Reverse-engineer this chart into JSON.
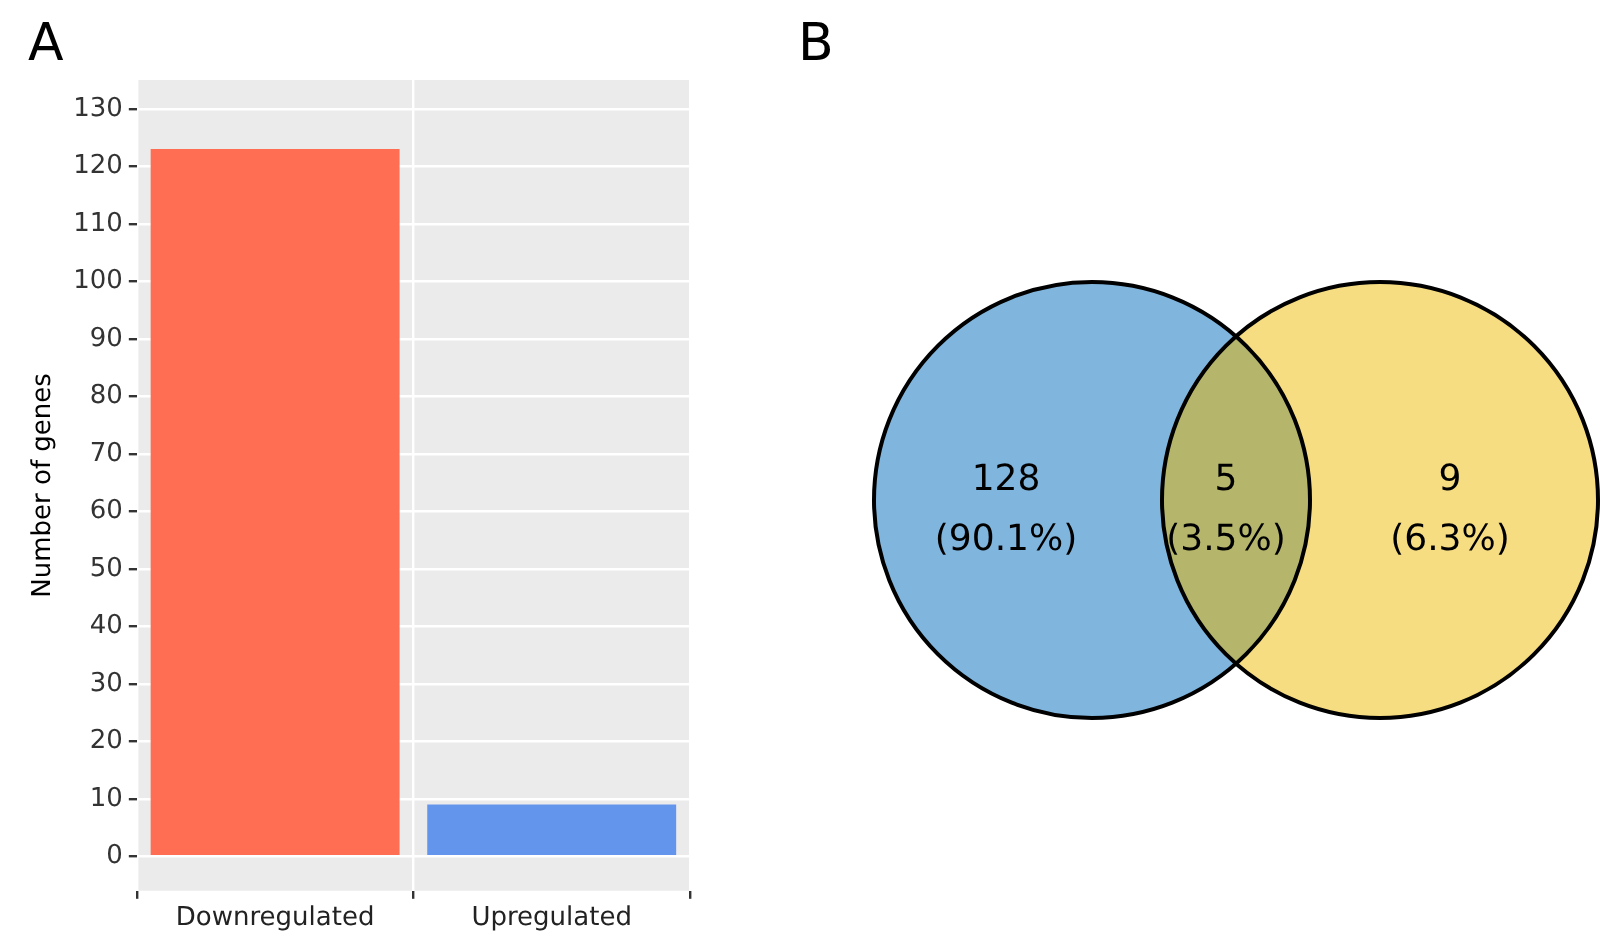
{
  "chart_data": [
    {
      "type": "bar",
      "title": "A",
      "ylabel": "Number of genes",
      "categories": [
        "Downregulated",
        "Upregulated"
      ],
      "values": [
        123,
        9
      ],
      "colors": [
        "#ff6e52",
        "#6495ed"
      ],
      "ylim": [
        -6,
        135
      ],
      "yticks": [
        0,
        10,
        20,
        30,
        40,
        50,
        60,
        70,
        80,
        90,
        100,
        110,
        120,
        130
      ],
      "grid": true,
      "legend": false
    },
    {
      "type": "other",
      "title": "B",
      "categories": [
        null,
        null,
        null
      ],
      "values": [
        128,
        5,
        9
      ],
      "value_labels": [
        "128 (90.1%)",
        "5 (3.5%)",
        "9 (6.3%)"
      ],
      "colors": [
        "#80b6de",
        "#b5b66c",
        "#f6dd82"
      ]
    }
  ]
}
